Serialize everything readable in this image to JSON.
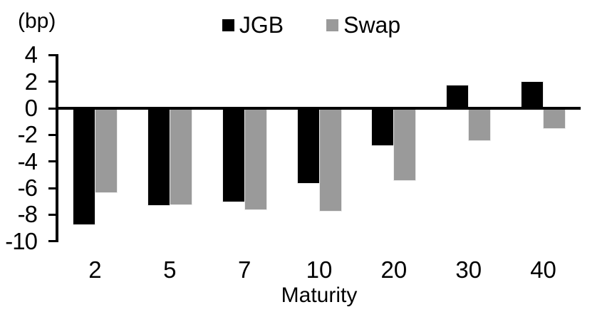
{
  "chart_data": {
    "type": "bar",
    "title": "",
    "unit_label": "(bp)",
    "xlabel": "Maturity",
    "ylabel": "",
    "categories": [
      "2",
      "5",
      "7",
      "10",
      "20",
      "30",
      "40"
    ],
    "series": [
      {
        "name": "JGB",
        "color": "#000000",
        "values": [
          -8.7,
          -7.3,
          -7.0,
          -5.6,
          -2.8,
          1.7,
          2.0
        ]
      },
      {
        "name": "Swap",
        "color": "#9a9a9a",
        "values": [
          -6.3,
          -7.2,
          -7.6,
          -7.7,
          -5.4,
          -2.4,
          -1.5
        ]
      }
    ],
    "y_ticks": [
      4,
      2,
      0,
      -2,
      -4,
      -6,
      -8,
      -10
    ],
    "ylim": [
      -10,
      4
    ],
    "grid": false,
    "legend_position": "top-center",
    "axis_color": "#000000",
    "background_color": "#ffffff"
  }
}
